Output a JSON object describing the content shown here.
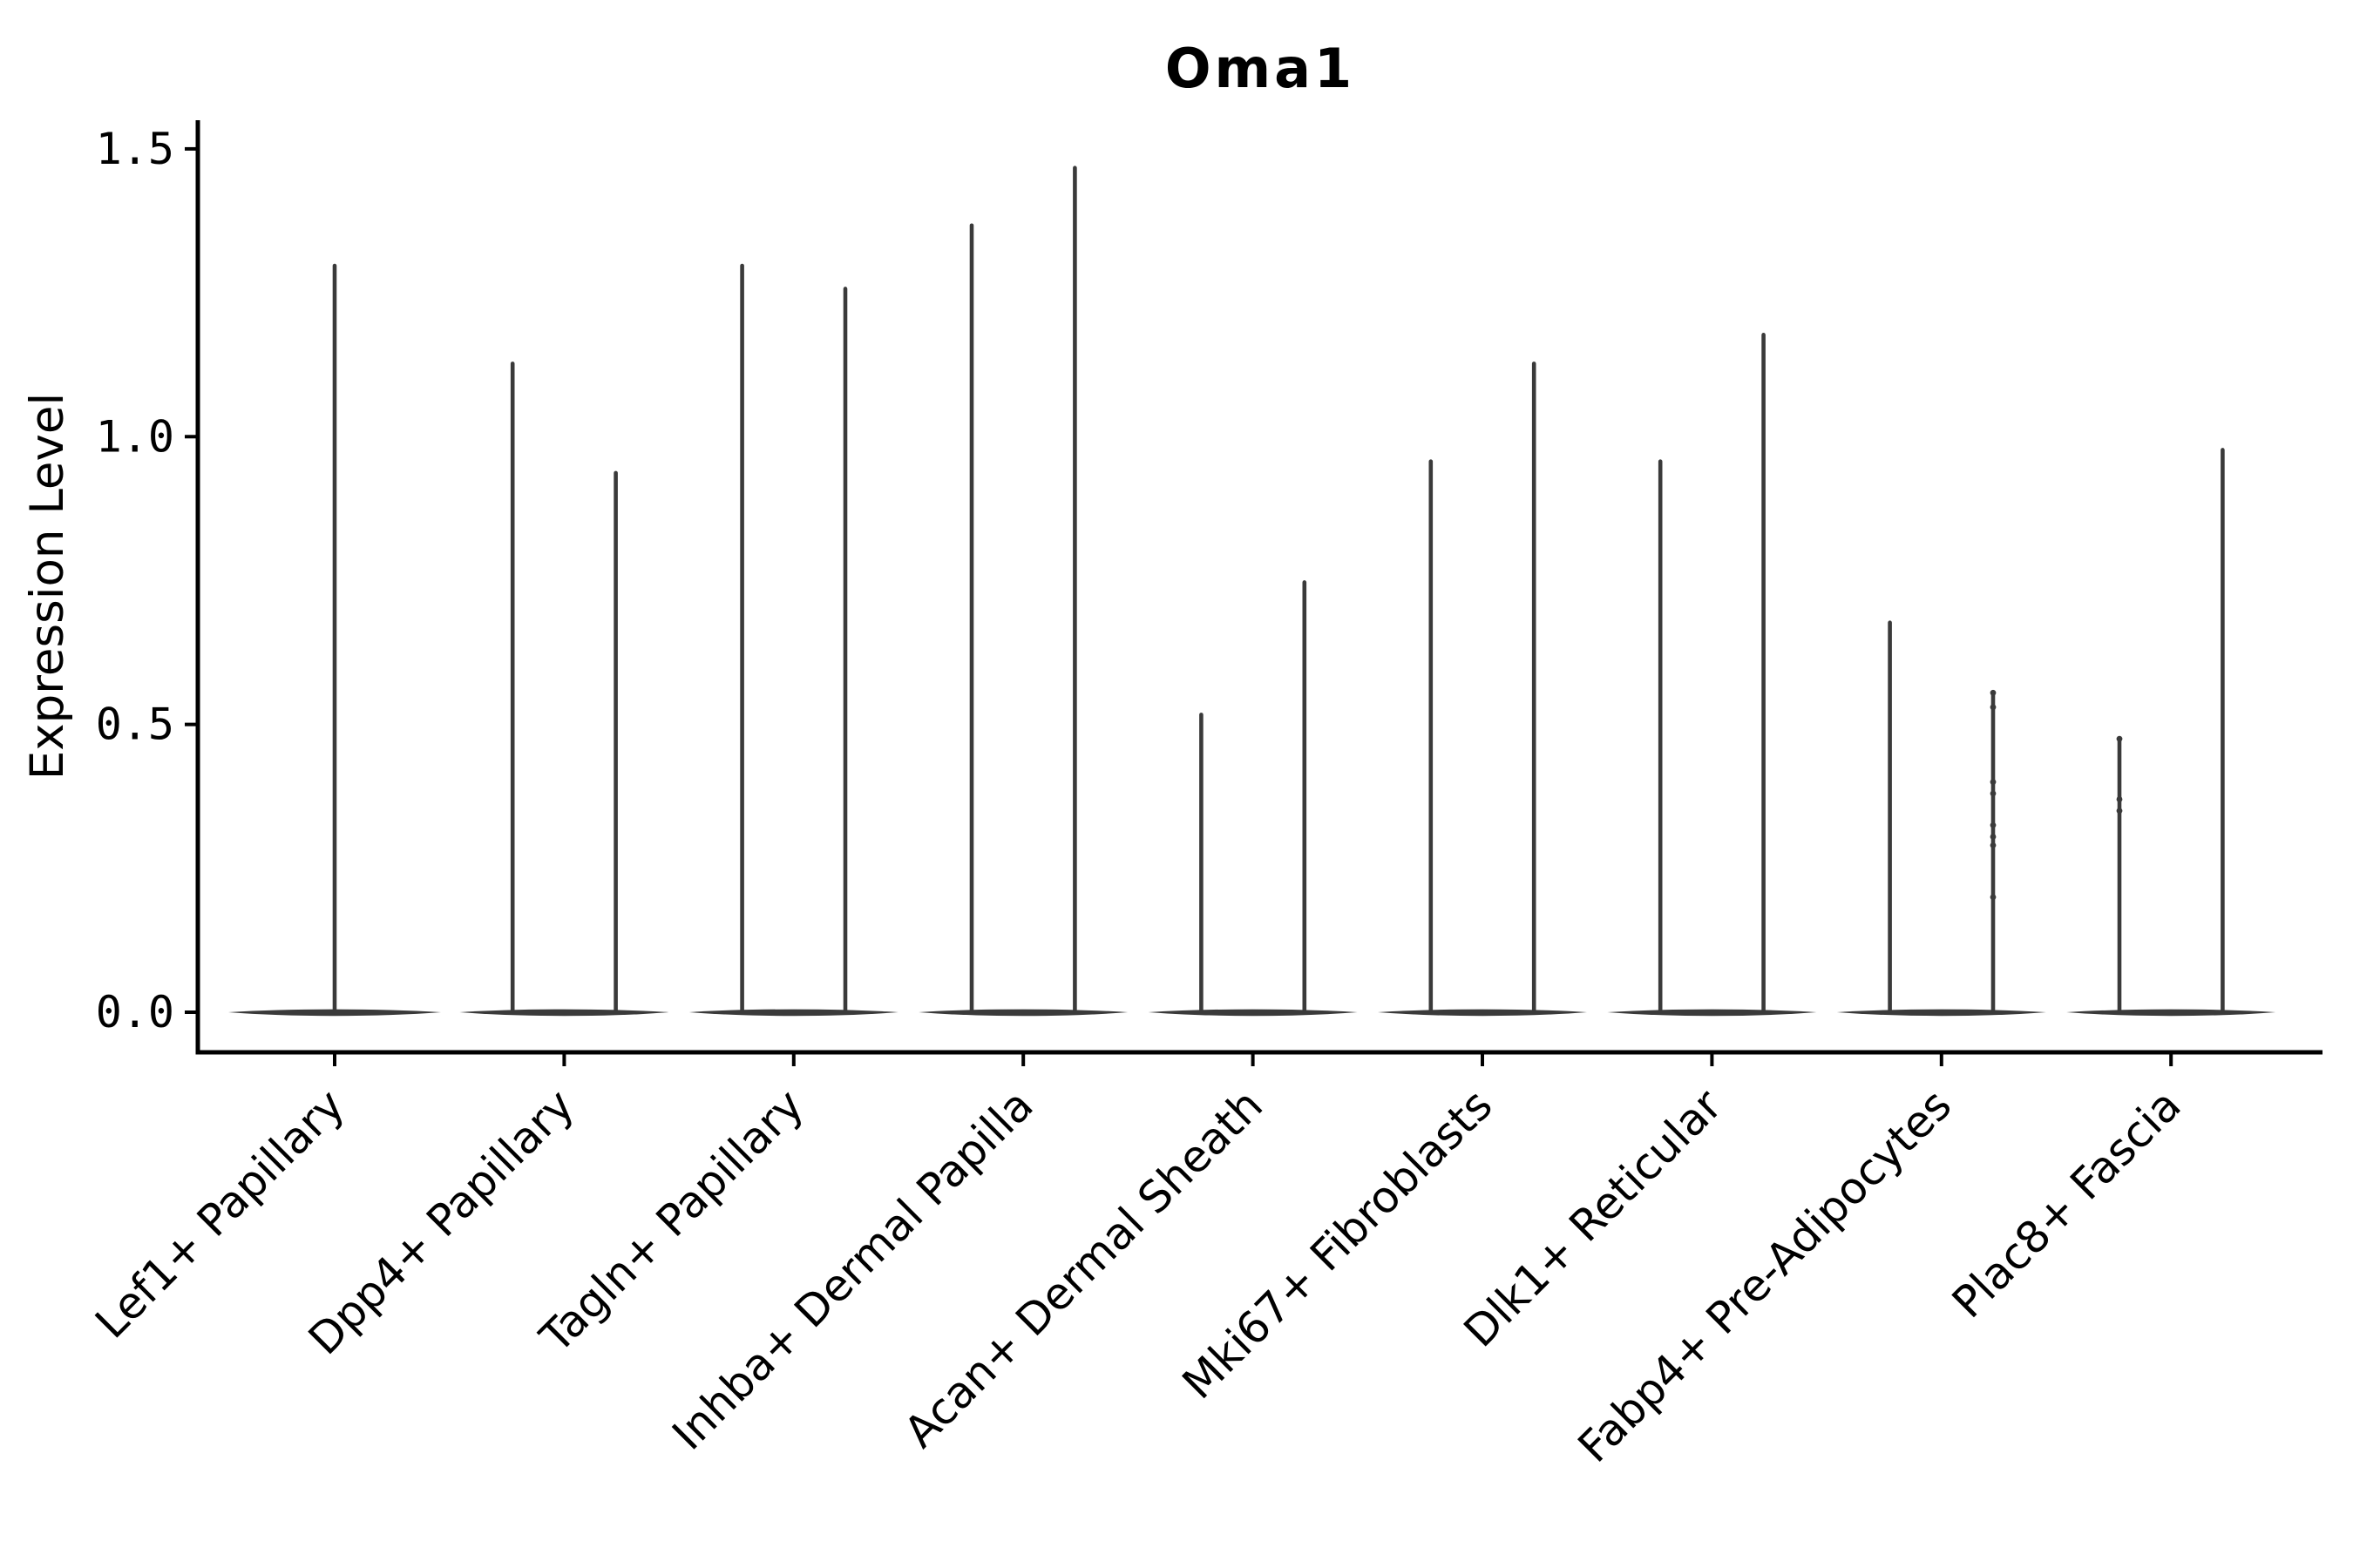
{
  "title": "Oma1",
  "chart_data": {
    "type": "violin",
    "title": "Oma1",
    "xlabel": "",
    "ylabel": "Expression Level",
    "ytick_labels": [
      "0.0",
      "0.5",
      "1.0",
      "1.5"
    ],
    "ytick_values": [
      0.0,
      0.5,
      1.0,
      1.5
    ],
    "ylim": [
      -0.07,
      1.55
    ],
    "grid": false,
    "legend": "none",
    "background": "#ffffff",
    "categories": [
      "Lef1+ Papillary",
      "Dpp4+ Papillary",
      "Tagln+ Papillary",
      "Inhba+ Dermal Papilla",
      "Acan+ Dermal Sheath",
      "Mki67+ Fibroblasts",
      "Dlk1+ Reticular",
      "Fabp4+ Pre-Adipocytes",
      "Plac8+ Fascia"
    ],
    "series": [
      {
        "category": "Lef1+ Papillary",
        "violin_maxima": [
          1.3
        ],
        "dots": []
      },
      {
        "category": "Dpp4+ Papillary",
        "violin_maxima": [
          1.13,
          0.94
        ],
        "dots": []
      },
      {
        "category": "Tagln+ Papillary",
        "violin_maxima": [
          1.3,
          1.26
        ],
        "dots": []
      },
      {
        "category": "Inhba+ Dermal Papilla",
        "violin_maxima": [
          1.37,
          1.47
        ],
        "dots": []
      },
      {
        "category": "Acan+ Dermal Sheath",
        "violin_maxima": [
          0.52,
          0.75
        ],
        "dots": []
      },
      {
        "category": "Mki67+ Fibroblasts",
        "violin_maxima": [
          0.96,
          1.13
        ],
        "dots": []
      },
      {
        "category": "Dlk1+ Reticular",
        "violin_maxima": [
          0.96,
          1.18
        ],
        "dots": []
      },
      {
        "category": "Fabp4+ Pre-Adipocytes",
        "violin_maxima": [
          0.68,
          0.555
        ],
        "dots": [
          {
            "violin": 1,
            "values": [
              0.555,
              0.53,
              0.4,
              0.38,
              0.325,
              0.305,
              0.29,
              0.2
            ]
          }
        ]
      },
      {
        "category": "Plac8+ Fascia",
        "violin_maxima": [
          0.475,
          0.98
        ],
        "dots": [
          {
            "violin": 0,
            "values": [
              0.475,
              0.37,
              0.35
            ]
          }
        ]
      }
    ],
    "colors": {
      "violin": "#3a3a3a",
      "axis": "#000000",
      "text": "#000000",
      "background": "#ffffff"
    }
  }
}
